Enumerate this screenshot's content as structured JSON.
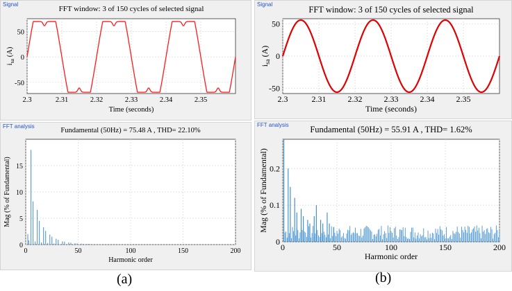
{
  "panels": [
    {
      "signal": {
        "tag": "Signal",
        "title": "FFT window: 3 of 150 cycles of selected signal",
        "ylabel": "i_sa (A)",
        "ylabel_main": "i",
        "ylabel_sub": "sa",
        "ylabel_unit": "(A)",
        "xlabel": "Time (seconds)",
        "xticks": [
          2.3,
          2.31,
          2.32,
          2.33,
          2.34,
          2.35
        ],
        "xtick_labels": [
          "2.3",
          "2.31",
          "2.32",
          "2.33",
          "2.34",
          "2.35"
        ],
        "yticks": [
          -50,
          0,
          50
        ],
        "ylim": [
          -72,
          75
        ],
        "xlim": [
          2.3,
          2.36
        ],
        "waveform": "flat-top",
        "peak": 75.48,
        "frequency_hz": 50,
        "color": "#ff1a1a"
      },
      "fft": {
        "tag": "FFT analysis",
        "title": "Fundamental (50Hz) = 75.48 A , THD= 22.10%",
        "ylabel": "Mag (% of Fundamental)",
        "xlabel": "Harmonic order",
        "xticks": [
          0,
          50,
          100,
          150,
          200
        ],
        "yticks": [
          0,
          5,
          10,
          15
        ],
        "ylim": [
          0,
          20
        ],
        "xlim": [
          0,
          200
        ],
        "bar_color": "#5599cc",
        "harmonics": [
          [
            2,
            2.0
          ],
          [
            3,
            0.8
          ],
          [
            5,
            18.0
          ],
          [
            7,
            8.2
          ],
          [
            9,
            0.6
          ],
          [
            11,
            6.6
          ],
          [
            13,
            4.5
          ],
          [
            15,
            0.4
          ],
          [
            17,
            3.3
          ],
          [
            19,
            2.6
          ],
          [
            21,
            0.3
          ],
          [
            23,
            1.9
          ],
          [
            25,
            1.5
          ],
          [
            27,
            0.2
          ],
          [
            29,
            1.1
          ],
          [
            31,
            0.9
          ],
          [
            35,
            0.6
          ],
          [
            37,
            0.55
          ],
          [
            41,
            0.4
          ],
          [
            43,
            0.35
          ],
          [
            47,
            0.25
          ],
          [
            49,
            0.22
          ],
          [
            53,
            0.18
          ],
          [
            55,
            0.15
          ],
          [
            59,
            0.12
          ],
          [
            61,
            0.1
          ],
          [
            65,
            0.08
          ],
          [
            71,
            0.06
          ],
          [
            77,
            0.05
          ],
          [
            83,
            0.04
          ],
          [
            89,
            0.03
          ]
        ]
      },
      "caption": "(a)"
    },
    {
      "signal": {
        "tag": "Signal",
        "title": "FFT window: 3 of 150 cycles of selected signal",
        "ylabel": "i_sa (A)",
        "ylabel_main": "i",
        "ylabel_sub": "sa",
        "ylabel_unit": "(A)",
        "xlabel": "Time (seconds)",
        "xticks": [
          2.3,
          2.31,
          2.32,
          2.33,
          2.34,
          2.35
        ],
        "xtick_labels": [
          "2.3",
          "2.31",
          "2.32",
          "2.33",
          "2.34",
          "2.35"
        ],
        "yticks": [
          -50,
          0,
          50
        ],
        "ylim": [
          -58,
          58
        ],
        "xlim": [
          2.3,
          2.36
        ],
        "waveform": "sine",
        "peak": 55.91,
        "frequency_hz": 50,
        "color": "#e00000"
      },
      "fft": {
        "tag": "FFT analysis",
        "title": "Fundamental (50Hz) = 55.91 A , THD= 1.62%",
        "ylabel": "Mag (% of Fundamental)",
        "xlabel": "Harmonic order",
        "xticks": [
          0,
          50,
          100,
          150,
          200
        ],
        "yticks": [
          0,
          0.1,
          0.2
        ],
        "ylim": [
          0,
          0.28
        ],
        "xlim": [
          0,
          200
        ],
        "bar_color": "#3388cc",
        "harmonics": [
          [
            1,
            0.28
          ],
          [
            5,
            0.2
          ],
          [
            7,
            0.15
          ],
          [
            11,
            0.12
          ],
          [
            13,
            0.08
          ],
          [
            17,
            0.09
          ],
          [
            19,
            0.07
          ],
          [
            23,
            0.06
          ],
          [
            25,
            0.05
          ],
          [
            29,
            0.07
          ],
          [
            31,
            0.1
          ],
          [
            35,
            0.06
          ],
          [
            37,
            0.05
          ],
          [
            41,
            0.08
          ],
          [
            43,
            0.05
          ],
          [
            47,
            0.04
          ]
        ],
        "noise_floor": 0.045
      },
      "caption": "(b)"
    }
  ]
}
